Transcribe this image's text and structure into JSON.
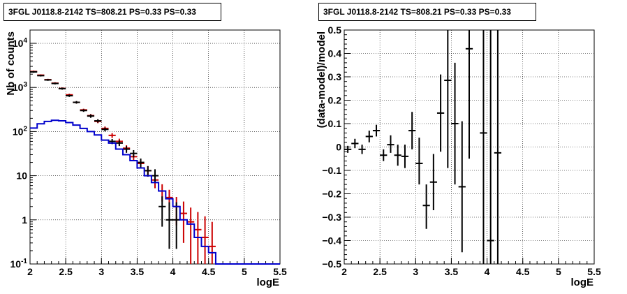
{
  "chart_data": [
    {
      "type": "line",
      "title": "3FGL J0118.8-2142 TS=808.21 PS=0.33 PS=0.33",
      "xlabel": "logE",
      "ylabel": "Nb of counts",
      "xlim": [
        2,
        5.5
      ],
      "ylim": [
        0.1,
        20000
      ],
      "yscale": "log",
      "grid": true,
      "xticks": [
        "2",
        "2.5",
        "3",
        "3.5",
        "4",
        "4.5",
        "5",
        "5.5"
      ],
      "yticks": [
        "10^{-1}",
        "1",
        "10",
        "10^{2}",
        "10^{3}",
        "10^{4}"
      ],
      "series": [
        {
          "color": "#cc0000",
          "kind": "errorbar",
          "x": [
            2.05,
            2.15,
            2.25,
            2.35,
            2.45,
            2.55,
            2.65,
            2.75,
            2.85,
            2.95,
            3.05,
            3.15,
            3.25,
            3.35,
            3.45,
            3.55,
            3.65,
            3.75,
            3.85,
            3.95,
            4.05,
            4.15,
            4.25,
            4.35,
            4.45,
            4.55
          ],
          "y": [
            2300,
            1900,
            1500,
            1250,
            950,
            680,
            460,
            310,
            230,
            170,
            118,
            82,
            60,
            42,
            27,
            19,
            13,
            8,
            4.5,
            3.2,
            2.0,
            1.4,
            0.9,
            0.6,
            0.4,
            0.25
          ],
          "ylow": [
            2200,
            1820,
            1430,
            1190,
            900,
            640,
            430,
            290,
            210,
            155,
            106,
            72,
            51,
            35,
            21.5,
            14.5,
            9.5,
            5.2,
            2.6,
            1.6,
            0.75,
            0.3,
            0.1,
            0.1,
            0.1,
            0.1
          ],
          "yhigh": [
            2400,
            1980,
            1570,
            1310,
            1000,
            720,
            490,
            330,
            250,
            185,
            130,
            92,
            69,
            49,
            32.5,
            23.5,
            16.5,
            10.8,
            6.4,
            4.8,
            3.3,
            2.6,
            1.9,
            1.5,
            1.2,
            0.9
          ]
        },
        {
          "color": "#000000",
          "kind": "errorbar",
          "x": [
            2.05,
            2.15,
            2.25,
            2.35,
            2.45,
            2.55,
            2.65,
            2.75,
            2.85,
            2.95,
            3.05,
            3.15,
            3.25,
            3.35,
            3.45,
            3.55,
            3.65,
            3.75,
            3.85,
            3.95,
            4.05
          ],
          "y": [
            2250,
            1850,
            1480,
            1230,
            940,
            650,
            460,
            300,
            225,
            175,
            112,
            60,
            55,
            40,
            32,
            20,
            13,
            10,
            2.0,
            1.0,
            1.0
          ],
          "ylow": [
            2150,
            1770,
            1410,
            1170,
            890,
            610,
            430,
            280,
            205,
            160,
            101,
            52,
            47,
            33,
            26,
            15.5,
            9.5,
            7.0,
            0.7,
            0.22,
            0.22
          ],
          "yhigh": [
            2350,
            1930,
            1550,
            1290,
            990,
            690,
            490,
            320,
            245,
            190,
            123,
            68,
            63,
            47,
            38,
            24.5,
            16.5,
            14,
            3.4,
            2.5,
            2.5
          ]
        },
        {
          "color": "#0000cc",
          "kind": "step",
          "x_edges": [
            2.0,
            2.1,
            2.2,
            2.3,
            2.4,
            2.5,
            2.6,
            2.7,
            2.8,
            2.9,
            3.0,
            3.1,
            3.2,
            3.3,
            3.4,
            3.5,
            3.6,
            3.7,
            3.8,
            3.9,
            4.0,
            4.1,
            4.2,
            4.3,
            4.4,
            4.5,
            4.6,
            5.5
          ],
          "values": [
            120,
            150,
            170,
            180,
            175,
            160,
            140,
            118,
            100,
            84,
            64,
            55,
            40,
            30,
            22,
            15,
            10,
            7,
            4.5,
            3.0,
            2.0,
            1.0,
            0.8,
            0.4,
            0.25,
            0.18,
            0.1
          ]
        }
      ]
    },
    {
      "type": "scatter",
      "title": "3FGL J0118.8-2142 TS=808.21 PS=0.33 PS=0.33",
      "xlabel": "logE",
      "ylabel": "(data-model)/model",
      "xlim": [
        2,
        5.5
      ],
      "ylim": [
        -0.5,
        0.5
      ],
      "grid": true,
      "xticks": [
        "2",
        "2.5",
        "3",
        "3.5",
        "4",
        "4.5",
        "5",
        "5.5"
      ],
      "yticks": [
        "−0.5",
        "−0.4",
        "−0.3",
        "−0.2",
        "−0.1",
        "0",
        "0.1",
        "0.2",
        "0.3",
        "0.4",
        "0.5"
      ],
      "series": [
        {
          "color": "#000000",
          "kind": "errorbar",
          "x": [
            2.05,
            2.15,
            2.25,
            2.35,
            2.45,
            2.55,
            2.65,
            2.75,
            2.85,
            2.95,
            3.05,
            3.15,
            3.25,
            3.35,
            3.45,
            3.55,
            3.65,
            3.75,
            3.95,
            4.05,
            4.15
          ],
          "y": [
            -0.01,
            0.015,
            -0.01,
            0.045,
            0.07,
            -0.035,
            0.01,
            -0.035,
            -0.04,
            0.07,
            -0.07,
            -0.25,
            -0.15,
            0.145,
            0.285,
            0.1,
            -0.17,
            0.42,
            0.06,
            -0.4,
            -0.025
          ],
          "ylow": [
            -0.025,
            -0.005,
            -0.03,
            0.02,
            0.045,
            -0.06,
            -0.025,
            -0.08,
            -0.09,
            -0.01,
            -0.16,
            -0.35,
            -0.27,
            -0.02,
            -0.09,
            -0.16,
            -0.45,
            -0.05,
            -0.5,
            -0.5,
            -0.5
          ],
          "yhigh": [
            0.005,
            0.035,
            0.01,
            0.07,
            0.095,
            -0.01,
            0.05,
            0.01,
            0.01,
            0.15,
            0.04,
            -0.16,
            -0.03,
            0.31,
            0.5,
            0.36,
            0.11,
            0.5,
            0.5,
            0.5,
            0.5
          ]
        }
      ]
    }
  ]
}
